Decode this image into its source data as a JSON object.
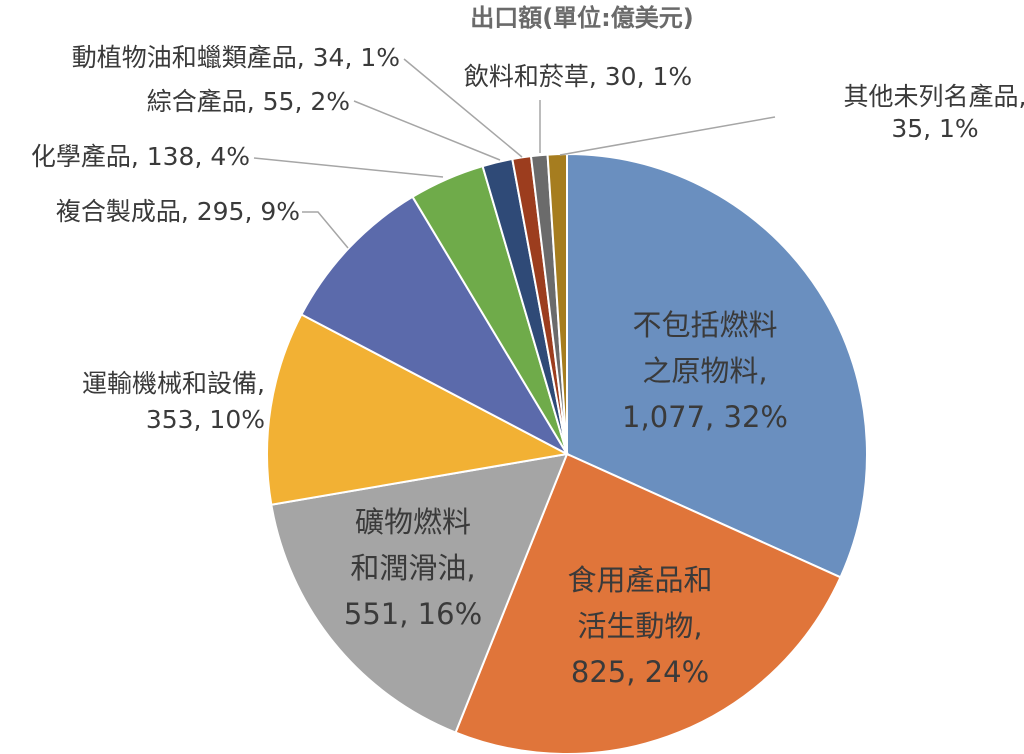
{
  "chart_data": {
    "type": "pie",
    "title": "出口額(單位:億美元)",
    "series": [
      {
        "values": [
          {
            "category": "不包括燃料之原物料",
            "value": 1077,
            "percent": "32%",
            "color": "#6a8fbf",
            "label_lines": [
              "不包括燃料",
              "之原物料,",
              "1,077, 32%"
            ]
          },
          {
            "category": "食用產品和活生動物",
            "value": 825,
            "percent": "24%",
            "color": "#e0753a",
            "label_lines": [
              "食用產品和",
              "活生動物,",
              "825, 24%"
            ]
          },
          {
            "category": "礦物燃料和潤滑油",
            "value": 551,
            "percent": "16%",
            "color": "#a5a5a5",
            "label_lines": [
              "礦物燃料",
              "和潤滑油,",
              "551, 16%"
            ]
          },
          {
            "category": "運輸機械和設備",
            "value": 353,
            "percent": "10%",
            "color": "#f2b134",
            "label_lines": [
              "運輸機械和設備,",
              "353, 10%"
            ]
          },
          {
            "category": "複合製成品",
            "value": 295,
            "percent": "9%",
            "color": "#5b6aab",
            "label_lines": [
              "複合製成品, 295, 9%"
            ]
          },
          {
            "category": "化學產品",
            "value": 138,
            "percent": "4%",
            "color": "#6fab4a",
            "label_lines": [
              "化學產品, 138, 4%"
            ]
          },
          {
            "category": "綜合產品",
            "value": 55,
            "percent": "2%",
            "color": "#2f4a77",
            "label_lines": [
              "綜合產品, 55, 2%"
            ]
          },
          {
            "category": "動植物油和蠟類產品",
            "value": 34,
            "percent": "1%",
            "color": "#9c3d1e",
            "label_lines": [
              "動植物油和蠟類產品, 34, 1%"
            ]
          },
          {
            "category": "飲料和菸草",
            "value": 30,
            "percent": "1%",
            "color": "#6b6b6b",
            "label_lines": [
              "飲料和菸草, 30, 1%"
            ]
          },
          {
            "category": "其他未列名產品",
            "value": 35,
            "percent": "1%",
            "color": "#a67d1f",
            "label_lines": [
              "其他未列名產品,",
              "35, 1%"
            ]
          }
        ]
      }
    ],
    "start_angle_deg": 0,
    "direction": "clockwise",
    "legend": "none",
    "data_labels": "category, value, percent"
  }
}
